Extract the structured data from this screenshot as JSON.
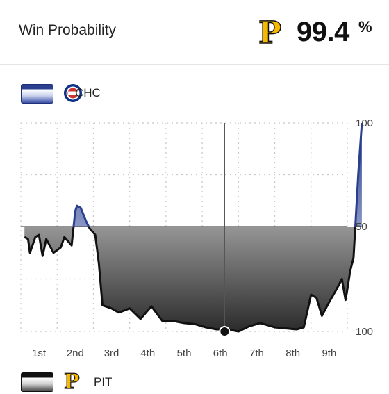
{
  "header": {
    "title": "Win Probability",
    "favored_team_logo": "pirates-p-logo",
    "probability": "99.4",
    "probability_unit": "%"
  },
  "legend": {
    "top_team": {
      "abbr": "CHC",
      "logo": "cubs-logo",
      "color": "#2a3f8f"
    },
    "bottom_team": {
      "abbr": "PIT",
      "logo": "pirates-p-logo",
      "color": "#111111"
    }
  },
  "colors": {
    "chc": "#2a3f8f",
    "pit": "#111111",
    "grid": "#c8c8c8",
    "accent_yellow": "#f7b900"
  },
  "chart_data": {
    "type": "area",
    "title": "Win Probability",
    "categories": [
      "1st",
      "2nd",
      "3rd",
      "4th",
      "5th",
      "6th",
      "7th",
      "8th",
      "9th"
    ],
    "y_ticks": [
      "100",
      "50",
      "100"
    ],
    "ylim": [
      -100,
      100
    ],
    "grid": true,
    "series": [
      {
        "name": "CHC",
        "x": [
          0.1,
          0.2,
          0.25,
          0.4,
          0.5,
          0.6,
          0.7,
          0.9,
          1.1,
          1.2,
          1.4,
          1.5,
          1.55,
          1.65,
          1.8,
          1.9,
          1.98,
          2.05,
          2.15,
          2.25,
          2.5,
          2.7,
          3.0,
          3.3,
          3.6,
          3.9,
          4.2,
          4.5,
          4.8,
          5.1,
          5.4,
          5.7,
          6.0,
          6.3,
          6.6,
          6.8,
          7.0,
          7.3,
          7.6,
          7.8,
          8.0,
          8.15,
          8.3,
          8.5,
          8.7,
          8.85,
          8.95,
          9.0,
          9.08,
          9.17,
          9.3,
          9.4
        ],
        "y": [
          -10,
          -12,
          -25,
          -10,
          -8,
          -28,
          -12,
          -25,
          -20,
          -10,
          -18,
          15,
          20,
          18,
          5,
          -2,
          -5,
          -8,
          -35,
          -75,
          -78,
          -82,
          -78,
          -88,
          -76,
          -90,
          -90,
          -92,
          -93,
          -96,
          -98,
          -98,
          -100,
          -95,
          -92,
          -94,
          -96,
          -97,
          -98,
          -96,
          -65,
          -68,
          -85,
          -72,
          -60,
          -50,
          -70,
          -60,
          -42,
          -30,
          50,
          100
        ]
      }
    ]
  }
}
